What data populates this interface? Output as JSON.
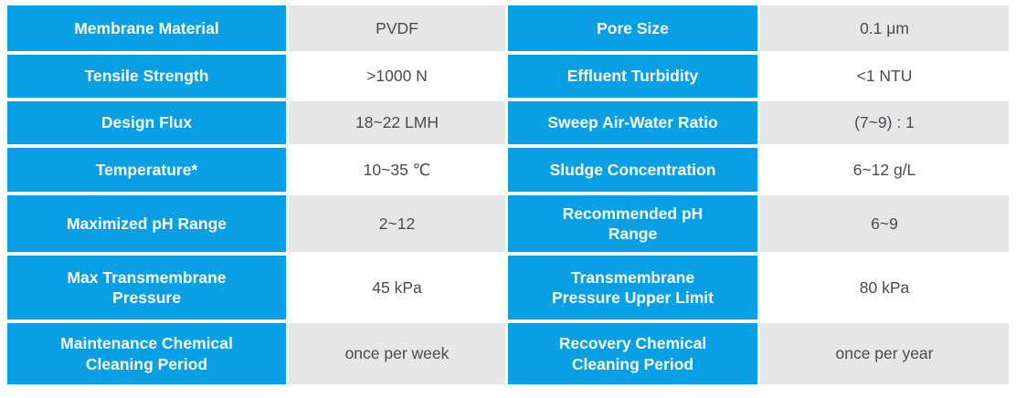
{
  "table": {
    "description": "Membrane system specification table",
    "colors": {
      "label_background": "#089fe4",
      "label_text": "#ffffff",
      "value_background_odd": "#e6e6e6",
      "value_background_even": "#ffffff",
      "value_text": "#4a4a52"
    },
    "rows": [
      {
        "left_label": "Membrane Material",
        "left_value": "PVDF",
        "right_label": "Pore Size",
        "right_value": "0.1 μm"
      },
      {
        "left_label": "Tensile Strength",
        "left_value": ">1000 N",
        "right_label": "Effluent Turbidity",
        "right_value": "<1 NTU"
      },
      {
        "left_label": "Design Flux",
        "left_value": "18~22 LMH",
        "right_label": "Sweep Air-Water Ratio",
        "right_value": "(7~9) : 1"
      },
      {
        "left_label": "Temperature*",
        "left_value": "10~35 ℃",
        "right_label": "Sludge Concentration",
        "right_value": "6~12 g/L"
      },
      {
        "left_label": "Maximized pH Range",
        "left_value": "2~12",
        "right_label": "Recommended pH\nRange",
        "right_value": "6~9"
      },
      {
        "left_label": "Max Transmembrane\nPressure",
        "left_value": "45 kPa",
        "right_label": "Transmembrane\nPressure Upper Limit",
        "right_value": "80 kPa"
      },
      {
        "left_label": "Maintenance Chemical\nCleaning Period",
        "left_value": "once per week",
        "right_label": "Recovery Chemical\nCleaning Period",
        "right_value": "once per year"
      }
    ]
  }
}
